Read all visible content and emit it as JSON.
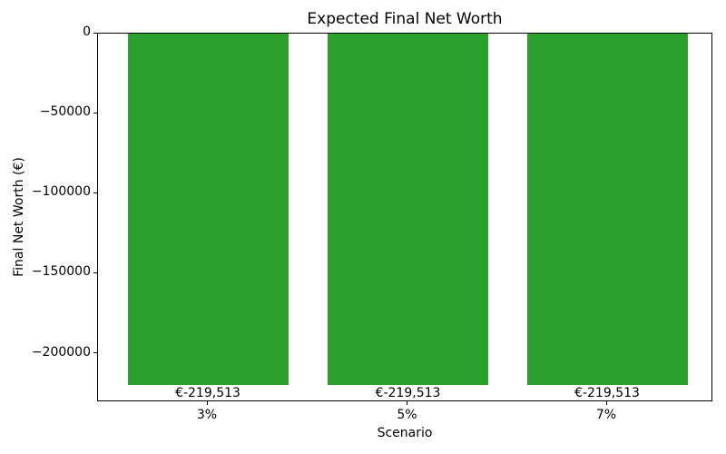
{
  "chart_data": {
    "type": "bar",
    "title": "Expected Final Net Worth",
    "xlabel": "Scenario",
    "ylabel": "Final Net Worth (€)",
    "categories": [
      "3%",
      "5%",
      "7%"
    ],
    "values": [
      -219513,
      -219513,
      -219513
    ],
    "bar_labels": [
      "€-219,513",
      "€-219,513",
      "€-219,513"
    ],
    "bar_color": "#2ca02c",
    "background_color": "#ffffff",
    "text_color": "#000000",
    "ylim": [
      -230300,
      0
    ],
    "yticks": {
      "values": [
        0,
        -50000,
        -100000,
        -150000,
        -200000
      ],
      "labels": [
        "0",
        "−50000",
        "−100000",
        "−150000",
        "−200000"
      ]
    },
    "grid": false,
    "legend": null
  }
}
